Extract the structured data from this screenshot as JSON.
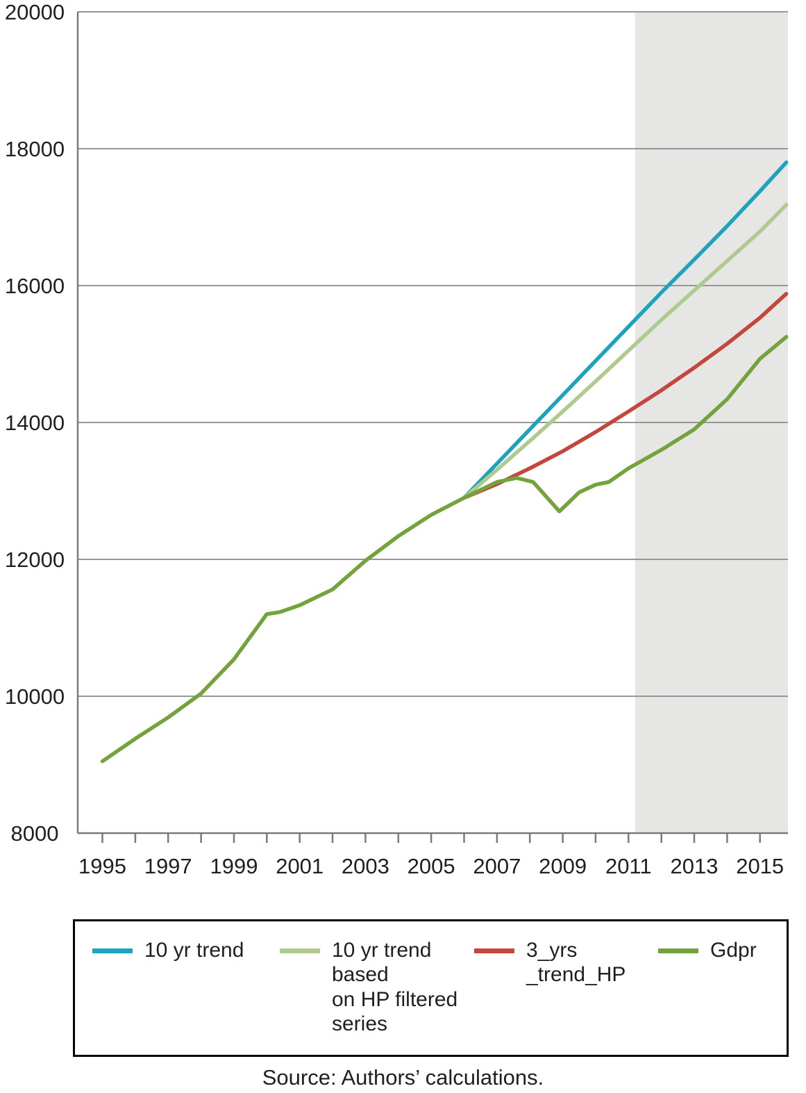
{
  "chart_data": {
    "type": "line",
    "title": "",
    "xlabel": "",
    "ylabel": "",
    "xlim": [
      1994.25,
      2015.85
    ],
    "ylim": [
      8000,
      20000
    ],
    "yticks": [
      8000,
      10000,
      12000,
      14000,
      16000,
      18000,
      20000
    ],
    "xticks": [
      1995,
      1997,
      1999,
      2001,
      2003,
      2005,
      2007,
      2009,
      2011,
      2013,
      2015
    ],
    "xticks_minor_range": [
      1995,
      2015
    ],
    "grid": "horizontal",
    "legend_position": "bottom",
    "shaded_region": {
      "from": 2011.2,
      "to": 2015.85,
      "color": "#e6e6e5"
    },
    "colors": {
      "grid": "#969696",
      "axis": "#7a7a7a",
      "text": "#1f1f1f"
    },
    "series": [
      {
        "name": "10 yr trend",
        "color": "#1fa3bc",
        "x": [
          2006,
          2007,
          2008,
          2009,
          2010,
          2011,
          2012,
          2013,
          2014,
          2015,
          2015.8
        ],
        "values": [
          12900,
          13400,
          13900,
          14400,
          14900,
          15400,
          15900,
          16380,
          16870,
          17380,
          17800
        ]
      },
      {
        "name": "10 yr trend based on HP filtered series",
        "color": "#afca8e",
        "x": [
          2006,
          2007,
          2008,
          2009,
          2010,
          2011,
          2012,
          2013,
          2014,
          2015,
          2015.8
        ],
        "values": [
          12900,
          13310,
          13730,
          14160,
          14600,
          15050,
          15500,
          15930,
          16360,
          16790,
          17180
        ]
      },
      {
        "name": "3_yrs _trend_HP",
        "color": "#c4473e",
        "x": [
          2006,
          2007,
          2008,
          2009,
          2010,
          2011,
          2012,
          2013,
          2014,
          2015,
          2015.8
        ],
        "values": [
          12900,
          13100,
          13330,
          13580,
          13860,
          14160,
          14470,
          14800,
          15150,
          15530,
          15880
        ]
      },
      {
        "name": "Gdpr",
        "color": "#74a23c",
        "x": [
          1995,
          1996,
          1997,
          1998,
          1999,
          2000,
          2000.4,
          2001,
          2002,
          2003,
          2004,
          2005,
          2006,
          2007,
          2007.6,
          2008.1,
          2008.9,
          2009.5,
          2010,
          2010.4,
          2011,
          2012,
          2013,
          2014,
          2015,
          2015.8
        ],
        "values": [
          9050,
          9380,
          9690,
          10040,
          10540,
          11200,
          11230,
          11330,
          11560,
          11980,
          12340,
          12650,
          12900,
          13130,
          13190,
          13130,
          12700,
          12980,
          13090,
          13130,
          13330,
          13600,
          13900,
          14340,
          14930,
          15250
        ]
      }
    ]
  },
  "legend": {
    "items": [
      {
        "label": "10 yr trend",
        "color": "#1fa3bc"
      },
      {
        "label": "10 yr trend\nbased\non HP filtered\nseries",
        "color": "#afca8e"
      },
      {
        "label": "3_yrs\n_trend_HP",
        "color": "#c4473e"
      },
      {
        "label": "Gdpr",
        "color": "#74a23c"
      }
    ]
  },
  "source_note": "Source: Authors’ calculations."
}
